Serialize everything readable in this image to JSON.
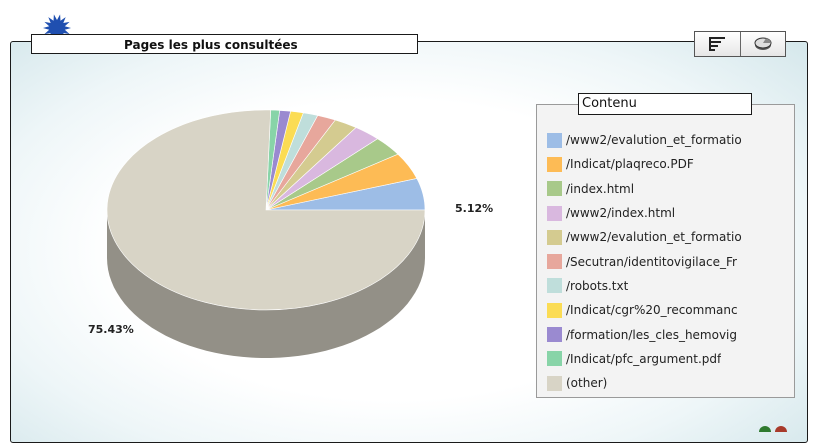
{
  "title": "Pages les plus consultées",
  "colors": {
    "accent_burst": "#1f4fb0"
  },
  "toolbar": {
    "buttons": [
      {
        "icon": "list-view-icon"
      },
      {
        "icon": "pie-view-icon"
      }
    ]
  },
  "chart_data": {
    "type": "pie",
    "style": "3d",
    "legend_title": "Contenu",
    "legend_position": "right",
    "slices": [
      {
        "label": "/www2/evalution_et_formatio",
        "value": 5.12,
        "color": "#9dbde6"
      },
      {
        "label": "/Indicat/plaqreco.PDF",
        "value": 4.3,
        "color": "#fdbb55"
      },
      {
        "label": "/index.html",
        "value": 3.2,
        "color": "#a8c98a"
      },
      {
        "label": "/www2/index.html",
        "value": 2.8,
        "color": "#d9b8df"
      },
      {
        "label": "/www2/evalution_et_formatio",
        "value": 2.4,
        "color": "#d4cb90"
      },
      {
        "label": "/Secutran/identitovigilace_Fr",
        "value": 1.9,
        "color": "#e7a79c"
      },
      {
        "label": "/robots.txt",
        "value": 1.5,
        "color": "#bfdedb"
      },
      {
        "label": "/Indicat/cgr%20_recommanc",
        "value": 1.3,
        "color": "#fbdc54"
      },
      {
        "label": "/formation/les_cles_hemovig",
        "value": 1.1,
        "color": "#9a8ad0"
      },
      {
        "label": "/Indicat/pfc_argument.pdf",
        "value": 0.9,
        "color": "#88d4a8"
      },
      {
        "label": "(other)",
        "value": 75.43,
        "color": "#d8d4c6"
      }
    ],
    "data_labels": [
      {
        "slice_index": 0,
        "text": "5.12%"
      },
      {
        "slice_index": 10,
        "text": "75.43%"
      }
    ]
  }
}
